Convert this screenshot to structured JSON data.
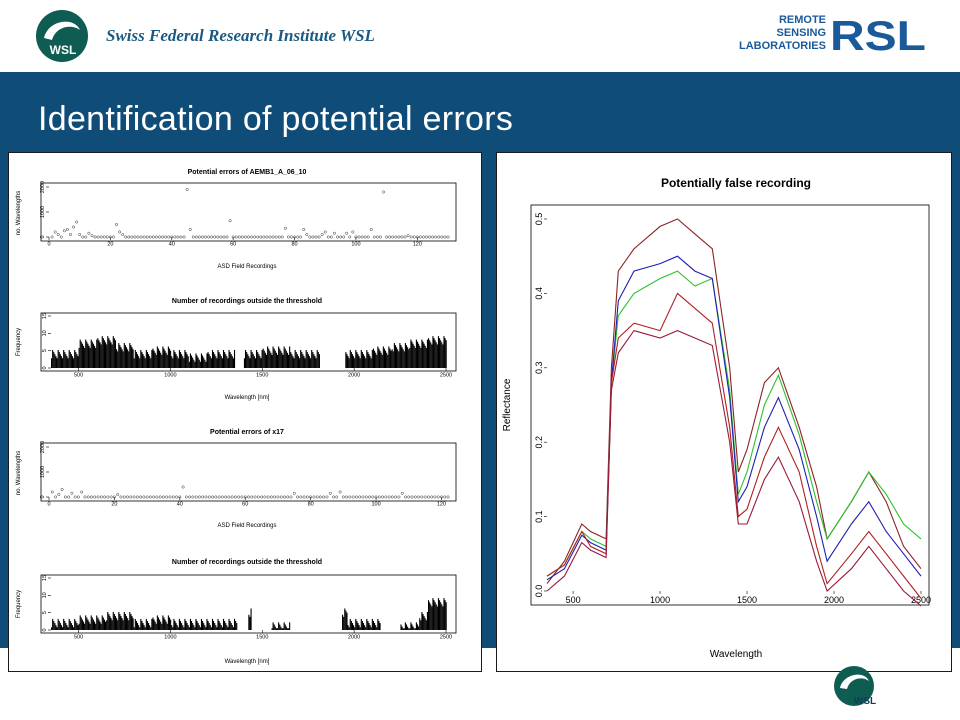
{
  "header": {
    "institute": "Swiss Federal Research Institute WSL",
    "wsl_logo_text": "WSL",
    "rsl_logo_lines": [
      "REMOTE",
      "SENSING",
      "LABORATORIES"
    ],
    "rsl_logo_mark": "RSL"
  },
  "slide": {
    "title": "Identification of potential errors"
  },
  "colors": {
    "band": "#0f4c78",
    "title_text": "#ffffff",
    "institute_text": "#1a5a82"
  },
  "chart_data": [
    {
      "type": "scatter",
      "title": "Potential errors of AEMB1_A_06_10",
      "xlabel": "ASD Field Recordings",
      "ylabel": "no. Wavelengths",
      "xlim": [
        0,
        130
      ],
      "ylim": [
        0,
        2000
      ],
      "xticks": [
        "0",
        "20",
        "40",
        "60",
        "80",
        "100",
        "120"
      ],
      "yticks": [
        "0",
        "1000",
        "2000"
      ],
      "baseline_value": 0,
      "n_recordings": 130,
      "points": [
        [
          2,
          200
        ],
        [
          3,
          100
        ],
        [
          5,
          250
        ],
        [
          6,
          300
        ],
        [
          7,
          100
        ],
        [
          8,
          400
        ],
        [
          9,
          600
        ],
        [
          10,
          100
        ],
        [
          13,
          150
        ],
        [
          14,
          50
        ],
        [
          22,
          500
        ],
        [
          23,
          200
        ],
        [
          24,
          100
        ],
        [
          45,
          1900
        ],
        [
          46,
          300
        ],
        [
          59,
          650
        ],
        [
          77,
          350
        ],
        [
          83,
          300
        ],
        [
          84,
          100
        ],
        [
          89,
          100
        ],
        [
          90,
          200
        ],
        [
          93,
          150
        ],
        [
          97,
          150
        ],
        [
          99,
          200
        ],
        [
          105,
          300
        ],
        [
          109,
          1800
        ],
        [
          117,
          50
        ]
      ]
    },
    {
      "type": "bar",
      "title": "Number of recordings outside the thresshold",
      "xlabel": "Wavelength [nm]",
      "ylabel": "Frequency",
      "xlim": [
        350,
        2500
      ],
      "ylim": [
        0,
        15
      ],
      "xticks": [
        "500",
        "1000",
        "1500",
        "2000",
        "2500"
      ],
      "yticks": [
        "0",
        "5",
        "10",
        "15"
      ],
      "gaps": [
        [
          1352,
          1400
        ],
        [
          1810,
          1950
        ]
      ],
      "bands": [
        [
          350,
          500,
          4
        ],
        [
          500,
          600,
          7
        ],
        [
          600,
          700,
          8
        ],
        [
          700,
          800,
          6
        ],
        [
          800,
          900,
          4
        ],
        [
          900,
          1000,
          5
        ],
        [
          1000,
          1100,
          4
        ],
        [
          1100,
          1200,
          3
        ],
        [
          1200,
          1350,
          4
        ],
        [
          1400,
          1500,
          4
        ],
        [
          1500,
          1650,
          5
        ],
        [
          1650,
          1810,
          4
        ],
        [
          1950,
          2100,
          4
        ],
        [
          2100,
          2200,
          5
        ],
        [
          2200,
          2300,
          6
        ],
        [
          2300,
          2400,
          7
        ],
        [
          2400,
          2500,
          8
        ]
      ]
    },
    {
      "type": "scatter",
      "title": "Potential errors of x17",
      "xlabel": "ASD Field Recordings",
      "ylabel": "no. Wavelengths",
      "xlim": [
        0,
        122
      ],
      "ylim": [
        0,
        2000
      ],
      "xticks": [
        "0",
        "20",
        "40",
        "60",
        "80",
        "100",
        "120"
      ],
      "yticks": [
        "0",
        "1000",
        "2000"
      ],
      "baseline_value": 0,
      "n_recordings": 122,
      "points": [
        [
          1,
          200
        ],
        [
          3,
          100
        ],
        [
          4,
          300
        ],
        [
          7,
          150
        ],
        [
          10,
          200
        ],
        [
          21,
          100
        ],
        [
          41,
          400
        ],
        [
          75,
          150
        ],
        [
          86,
          150
        ],
        [
          89,
          200
        ],
        [
          108,
          150
        ]
      ]
    },
    {
      "type": "bar",
      "title": "Number of recordings outside the thresshold",
      "xlabel": "Wavelength [nm]",
      "ylabel": "Frequency",
      "xlim": [
        350,
        2500
      ],
      "ylim": [
        0,
        15
      ],
      "xticks": [
        "500",
        "1000",
        "1500",
        "2000",
        "2500"
      ],
      "yticks": [
        "0",
        "5",
        "10",
        "15"
      ],
      "gaps": [
        [
          1360,
          1420
        ],
        [
          1440,
          1550
        ],
        [
          1650,
          1930
        ],
        [
          2140,
          2250
        ]
      ],
      "bands": [
        [
          350,
          500,
          2
        ],
        [
          500,
          650,
          3
        ],
        [
          650,
          800,
          4
        ],
        [
          800,
          900,
          2
        ],
        [
          900,
          1000,
          3
        ],
        [
          1000,
          1100,
          2
        ],
        [
          1100,
          1360,
          2
        ],
        [
          1420,
          1440,
          5
        ],
        [
          1550,
          1650,
          1
        ],
        [
          1930,
          1960,
          5
        ],
        [
          1960,
          2140,
          2
        ],
        [
          2250,
          2350,
          1
        ],
        [
          2350,
          2400,
          4
        ],
        [
          2400,
          2500,
          8
        ]
      ]
    },
    {
      "type": "line",
      "title": "Potentially false recording",
      "xlabel": "Wavelength",
      "ylabel": "Reflectance",
      "xlim": [
        350,
        2500
      ],
      "ylim": [
        0,
        0.5
      ],
      "xticks": [
        "500",
        "1000",
        "1500",
        "2000",
        "2500"
      ],
      "yticks": [
        "0.0",
        "0.1",
        "0.2",
        "0.3",
        "0.4",
        "0.5"
      ],
      "x": [
        350,
        450,
        550,
        600,
        690,
        720,
        760,
        850,
        1000,
        1100,
        1200,
        1300,
        1400,
        1450,
        1500,
        1600,
        1680,
        1800,
        1900,
        1960,
        2100,
        2200,
        2300,
        2400,
        2500
      ],
      "series": [
        {
          "color": "#8b2323",
          "values": [
            0.01,
            0.04,
            0.09,
            0.08,
            0.07,
            0.3,
            0.43,
            0.46,
            0.49,
            0.5,
            0.48,
            0.46,
            0.3,
            0.16,
            0.19,
            0.28,
            0.3,
            0.22,
            0.14,
            0.07,
            0.12,
            0.16,
            0.12,
            0.06,
            0.03
          ]
        },
        {
          "color": "#2ec02e",
          "values": [
            0.02,
            0.035,
            0.08,
            0.07,
            0.06,
            0.28,
            0.37,
            0.4,
            0.42,
            0.43,
            0.41,
            0.42,
            0.27,
            0.13,
            0.16,
            0.25,
            0.29,
            0.21,
            0.12,
            0.07,
            0.12,
            0.16,
            0.13,
            0.09,
            0.07
          ]
        },
        {
          "color": "#1f1fb4",
          "values": [
            0.015,
            0.03,
            0.075,
            0.065,
            0.055,
            0.28,
            0.39,
            0.43,
            0.44,
            0.45,
            0.43,
            0.42,
            0.26,
            0.12,
            0.14,
            0.22,
            0.26,
            0.19,
            0.1,
            0.04,
            0.09,
            0.12,
            0.08,
            0.05,
            0.02
          ]
        },
        {
          "color": "#b02020",
          "values": [
            0.02,
            0.035,
            0.08,
            0.06,
            0.05,
            0.28,
            0.34,
            0.36,
            0.35,
            0.4,
            0.38,
            0.36,
            0.22,
            0.1,
            0.11,
            0.18,
            0.22,
            0.16,
            0.06,
            0.01,
            0.05,
            0.08,
            0.05,
            0.02,
            -0.01
          ]
        },
        {
          "color": "#9a1a3a",
          "values": [
            0.0,
            0.02,
            0.065,
            0.055,
            0.045,
            0.27,
            0.32,
            0.35,
            0.34,
            0.35,
            0.34,
            0.33,
            0.2,
            0.09,
            0.09,
            0.15,
            0.18,
            0.12,
            0.04,
            0.0,
            0.03,
            0.06,
            0.03,
            0.0,
            -0.02
          ]
        }
      ]
    }
  ]
}
